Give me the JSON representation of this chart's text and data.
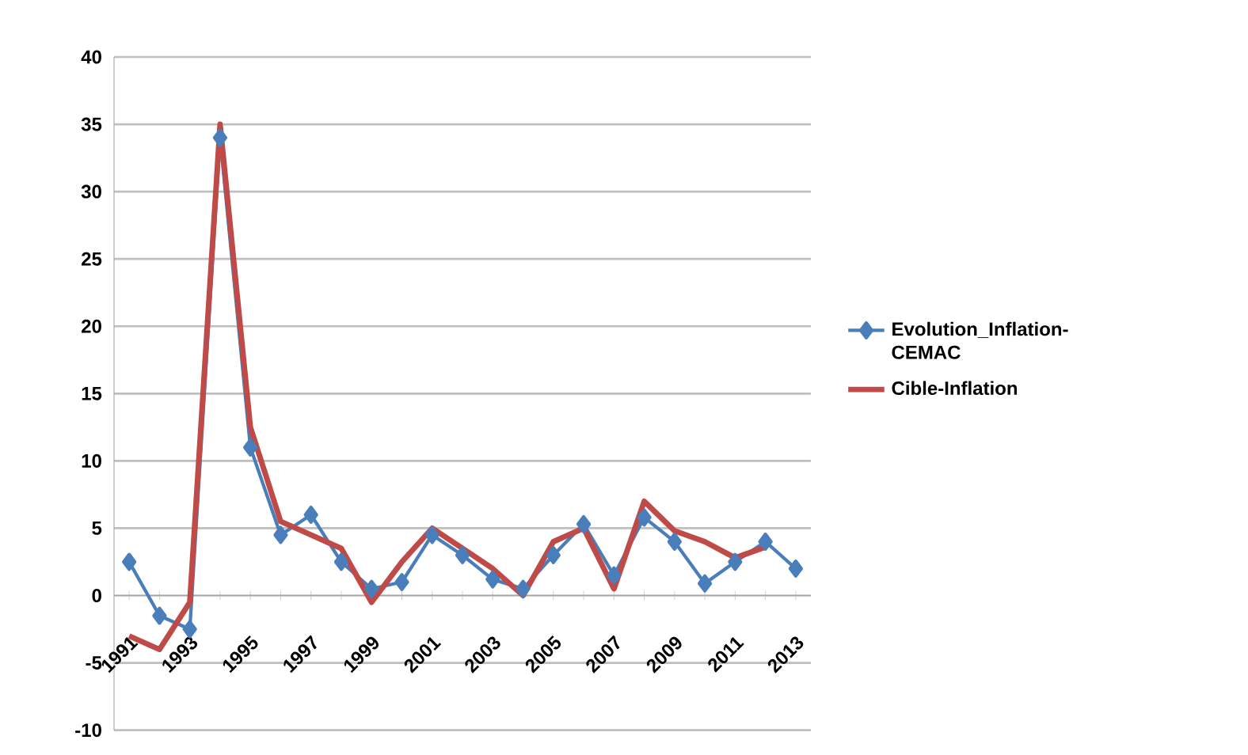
{
  "chart_data": {
    "type": "line",
    "categories": [
      "1991",
      null,
      "1993",
      null,
      "1995",
      null,
      "1997",
      null,
      "1999",
      null,
      "2001",
      null,
      "2003",
      null,
      "2005",
      null,
      "2007",
      null,
      "2009",
      null,
      "2011",
      null,
      "2013"
    ],
    "series": [
      {
        "name": "Evolution_Inflation-CEMAC",
        "color": "#4a7ebb",
        "marker": "diamond",
        "values": [
          2.5,
          -1.5,
          -2.5,
          34,
          11,
          4.5,
          6,
          2.5,
          0.5,
          1,
          4.5,
          3,
          1.2,
          0.5,
          3,
          5.3,
          1.5,
          5.8,
          4,
          0.9,
          2.5,
          4,
          2
        ]
      },
      {
        "name": "Cible-Inflation",
        "color": "#be4b48",
        "marker": "none",
        "values": [
          -3,
          -4,
          -0.5,
          35,
          12.5,
          5.5,
          4.5,
          3.5,
          -0.5,
          2.5,
          5,
          3.5,
          2,
          0,
          4,
          5,
          0.5,
          7,
          4.8,
          4,
          2.8,
          3.6,
          null
        ]
      }
    ],
    "ylim": [
      -10,
      40
    ],
    "yticks": [
      -10,
      -5,
      0,
      5,
      10,
      15,
      20,
      25,
      30,
      35,
      40
    ],
    "grid": "y",
    "legend": "right",
    "line_style": "solid"
  }
}
